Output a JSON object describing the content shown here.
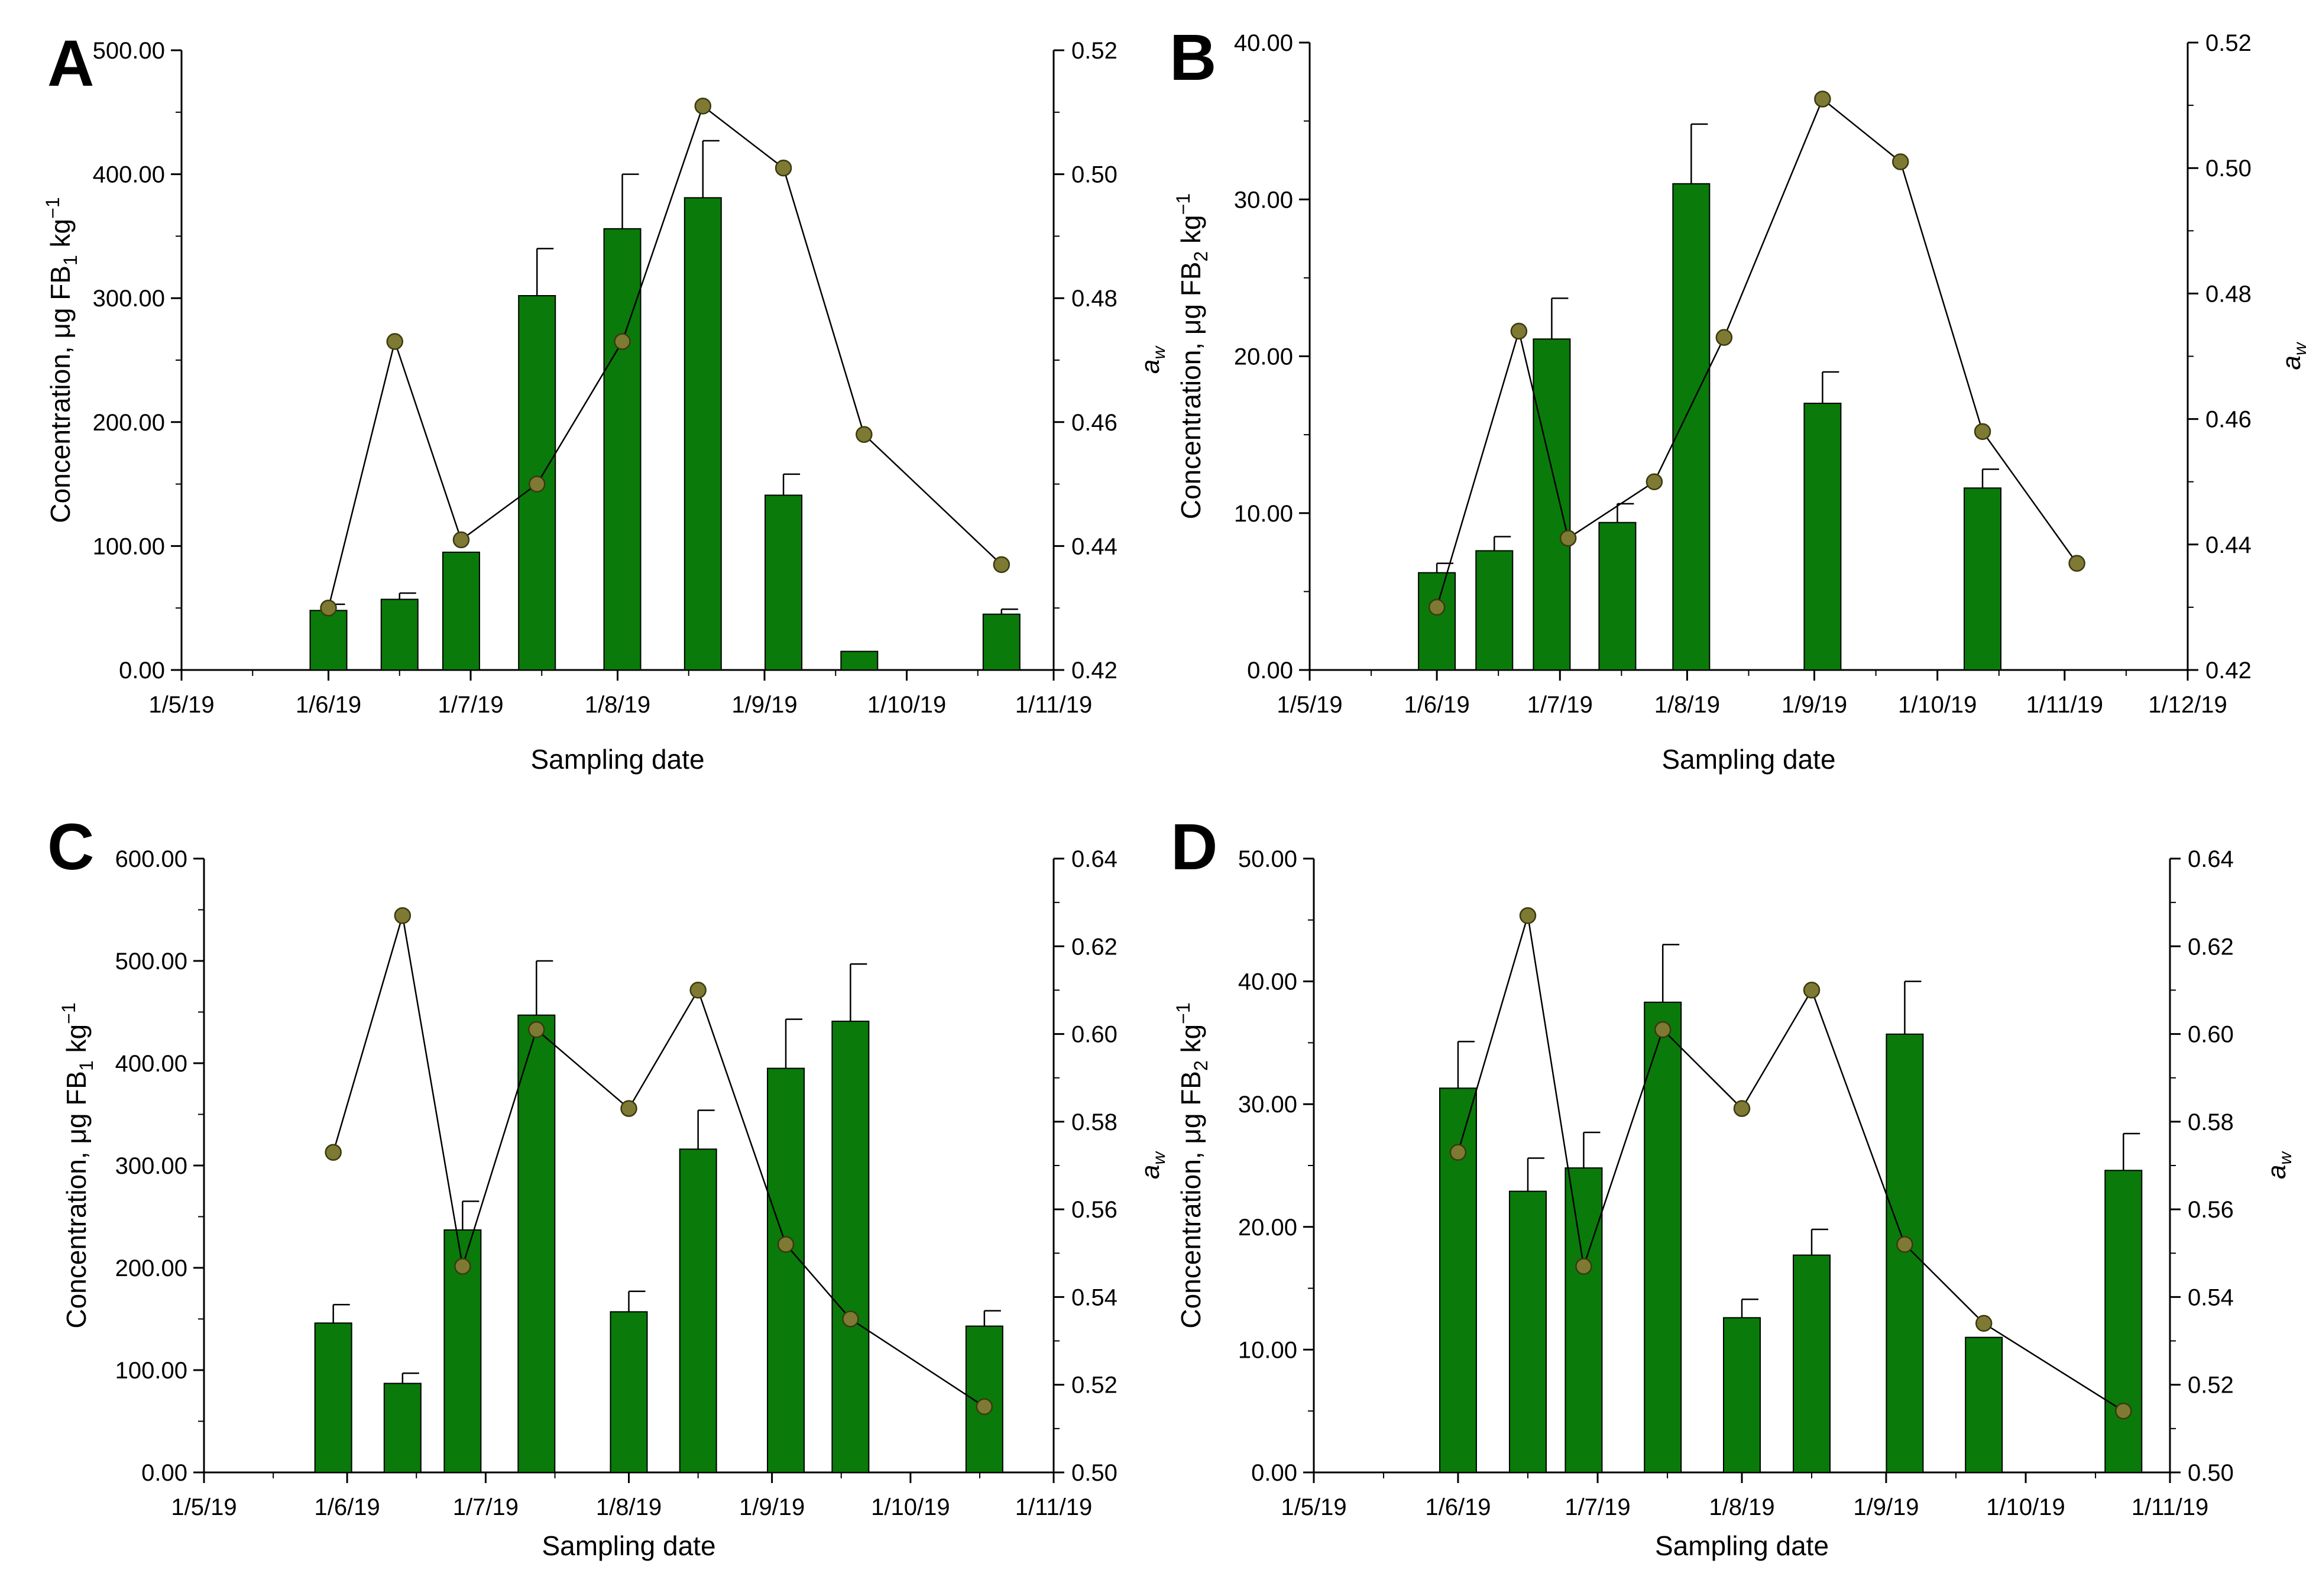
{
  "colors": {
    "bar": "#0a7a0a",
    "bar_stroke": "#000000",
    "marker": "#7f7a33",
    "marker_stroke": "#3a3a10",
    "line": "#000000",
    "axis": "#000000"
  },
  "chart_data": [
    {
      "type": "bar+line",
      "panel_letter": "A",
      "xlabel": "Sampling date",
      "ylabel_left_prefix": "Concentration, μg FB",
      "ylabel_left_sub": "1",
      "ylabel_left_suffix": " kg",
      "ylabel_left_sup": "−1",
      "ylabel_right_main": "a",
      "ylabel_right_sub": "w",
      "x_domain": [
        0,
        184
      ],
      "x_ticks": [
        {
          "label": "1/5/19",
          "value": 0
        },
        {
          "label": "1/6/19",
          "value": 31
        },
        {
          "label": "1/7/19",
          "value": 61
        },
        {
          "label": "1/8/19",
          "value": 92
        },
        {
          "label": "1/9/19",
          "value": 123
        },
        {
          "label": "1/10/19",
          "value": 153
        },
        {
          "label": "1/11/19",
          "value": 184
        }
      ],
      "x_minor": [
        15,
        46,
        76,
        107,
        138,
        168
      ],
      "y_left": {
        "min": 0,
        "max": 500,
        "ticks": [
          "0.00",
          "100.00",
          "200.00",
          "300.00",
          "400.00",
          "500.00"
        ],
        "minor": [
          50,
          150,
          250,
          350,
          450
        ]
      },
      "y_right": {
        "min": 0.42,
        "max": 0.52,
        "ticks": [
          "0.42",
          "0.44",
          "0.46",
          "0.48",
          "0.50",
          "0.52"
        ],
        "minor": [
          0.43,
          0.45,
          0.47,
          0.49,
          0.51
        ]
      },
      "bars": {
        "x": [
          31,
          46,
          59,
          75,
          93,
          110,
          127,
          143,
          173
        ],
        "values": [
          48,
          57,
          95,
          302,
          356,
          381,
          141,
          15,
          45
        ],
        "errors": [
          5,
          5,
          0,
          38,
          44,
          46,
          17,
          0,
          4
        ]
      },
      "line": {
        "x": [
          31,
          45,
          59,
          75,
          93,
          110,
          127,
          144,
          173
        ],
        "values": [
          0.43,
          0.473,
          0.441,
          0.45,
          0.473,
          0.511,
          0.501,
          0.458,
          0.437
        ]
      }
    },
    {
      "type": "bar+line",
      "panel_letter": "B",
      "xlabel": "Sampling date",
      "ylabel_left_prefix": "Concentration, μg FB",
      "ylabel_left_sub": "2",
      "ylabel_left_suffix": " kg",
      "ylabel_left_sup": "−1",
      "ylabel_right_main": "a",
      "ylabel_right_sub": "w",
      "x_domain": [
        0,
        214
      ],
      "x_ticks": [
        {
          "label": "1/5/19",
          "value": 0
        },
        {
          "label": "1/6/19",
          "value": 31
        },
        {
          "label": "1/7/19",
          "value": 61
        },
        {
          "label": "1/8/19",
          "value": 92
        },
        {
          "label": "1/9/19",
          "value": 123
        },
        {
          "label": "1/10/19",
          "value": 153
        },
        {
          "label": "1/11/19",
          "value": 184
        },
        {
          "label": "1/12/19",
          "value": 214
        }
      ],
      "x_minor": [
        15,
        46,
        76,
        107,
        138,
        168,
        199
      ],
      "y_left": {
        "min": 0,
        "max": 40,
        "ticks": [
          "0.00",
          "10.00",
          "20.00",
          "30.00",
          "40.00"
        ],
        "minor": [
          5,
          15,
          25,
          35
        ]
      },
      "y_right": {
        "min": 0.42,
        "max": 0.52,
        "ticks": [
          "0.42",
          "0.44",
          "0.46",
          "0.48",
          "0.50",
          "0.52"
        ],
        "minor": [
          0.43,
          0.45,
          0.47,
          0.49,
          0.51
        ]
      },
      "bars": {
        "x": [
          31,
          45,
          59,
          75,
          93,
          125,
          164
        ],
        "values": [
          6.2,
          7.6,
          21.1,
          9.4,
          31.0,
          17.0,
          11.6
        ],
        "errors": [
          0.6,
          0.9,
          2.6,
          1.2,
          3.8,
          2.0,
          1.2
        ]
      },
      "line": {
        "x": [
          31,
          51,
          63,
          84,
          101,
          125,
          144,
          164,
          187
        ],
        "values": [
          0.43,
          0.474,
          0.441,
          0.45,
          0.473,
          0.511,
          0.501,
          0.458,
          0.437
        ]
      }
    },
    {
      "type": "bar+line",
      "panel_letter": "C",
      "xlabel": "Sampling date",
      "ylabel_left_prefix": "Concentration, μg FB",
      "ylabel_left_sub": "1",
      "ylabel_left_suffix": " kg",
      "ylabel_left_sup": "−1",
      "ylabel_right_main": "a",
      "ylabel_right_sub": "w",
      "x_domain": [
        0,
        184
      ],
      "x_ticks": [
        {
          "label": "1/5/19",
          "value": 0
        },
        {
          "label": "1/6/19",
          "value": 31
        },
        {
          "label": "1/7/19",
          "value": 61
        },
        {
          "label": "1/8/19",
          "value": 92
        },
        {
          "label": "1/9/19",
          "value": 123
        },
        {
          "label": "1/10/19",
          "value": 153
        },
        {
          "label": "1/11/19",
          "value": 184
        }
      ],
      "x_minor": [
        15,
        46,
        76,
        107,
        138,
        168
      ],
      "y_left": {
        "min": 0,
        "max": 600,
        "ticks": [
          "0.00",
          "100.00",
          "200.00",
          "300.00",
          "400.00",
          "500.00",
          "600.00"
        ],
        "minor": [
          50,
          150,
          250,
          350,
          450,
          550
        ]
      },
      "y_right": {
        "min": 0.5,
        "max": 0.64,
        "ticks": [
          "0.50",
          "0.52",
          "0.54",
          "0.56",
          "0.58",
          "0.60",
          "0.62",
          "0.64"
        ],
        "minor": [
          0.51,
          0.53,
          0.55,
          0.57,
          0.59,
          0.61,
          0.63
        ]
      },
      "bars": {
        "x": [
          28,
          43,
          56,
          72,
          92,
          107,
          126,
          140,
          169
        ],
        "values": [
          146,
          87,
          237,
          447,
          157,
          316,
          395,
          441,
          143
        ],
        "errors": [
          18,
          10,
          28,
          53,
          20,
          38,
          48,
          56,
          15
        ]
      },
      "line": {
        "x": [
          28,
          43,
          56,
          72,
          92,
          107,
          126,
          140,
          169
        ],
        "values": [
          0.573,
          0.627,
          0.547,
          0.601,
          0.583,
          0.61,
          0.552,
          0.535,
          0.515
        ]
      }
    },
    {
      "type": "bar+line",
      "panel_letter": "D",
      "xlabel": "Sampling date",
      "ylabel_left_prefix": "Concentration, μg FB",
      "ylabel_left_sub": "2",
      "ylabel_left_suffix": " kg",
      "ylabel_left_sup": "−1",
      "ylabel_right_main": "a",
      "ylabel_right_sub": "w",
      "x_domain": [
        0,
        184
      ],
      "x_ticks": [
        {
          "label": "1/5/19",
          "value": 0
        },
        {
          "label": "1/6/19",
          "value": 31
        },
        {
          "label": "1/7/19",
          "value": 61
        },
        {
          "label": "1/8/19",
          "value": 92
        },
        {
          "label": "1/9/19",
          "value": 123
        },
        {
          "label": "1/10/19",
          "value": 153
        },
        {
          "label": "1/11/19",
          "value": 184
        }
      ],
      "x_minor": [
        15,
        46,
        76,
        107,
        138,
        168
      ],
      "y_left": {
        "min": 0,
        "max": 50,
        "ticks": [
          "0.00",
          "10.00",
          "20.00",
          "30.00",
          "40.00",
          "50.00"
        ],
        "minor": [
          5,
          15,
          25,
          35,
          45
        ]
      },
      "y_right": {
        "min": 0.5,
        "max": 0.64,
        "ticks": [
          "0.50",
          "0.52",
          "0.54",
          "0.56",
          "0.58",
          "0.60",
          "0.62",
          "0.64"
        ],
        "minor": [
          0.51,
          0.53,
          0.55,
          0.57,
          0.59,
          0.61,
          0.63
        ]
      },
      "bars": {
        "x": [
          31,
          46,
          58,
          75,
          92,
          107,
          127,
          144,
          174
        ],
        "values": [
          31.3,
          22.9,
          24.8,
          38.3,
          12.6,
          17.7,
          35.7,
          11.0,
          24.6
        ],
        "errors": [
          3.8,
          2.7,
          2.9,
          4.7,
          1.5,
          2.1,
          4.3,
          0.0,
          3.0
        ]
      },
      "line": {
        "x": [
          31,
          46,
          58,
          75,
          92,
          107,
          127,
          144,
          174
        ],
        "values": [
          0.573,
          0.627,
          0.547,
          0.601,
          0.583,
          0.61,
          0.552,
          0.534,
          0.514
        ]
      }
    }
  ]
}
